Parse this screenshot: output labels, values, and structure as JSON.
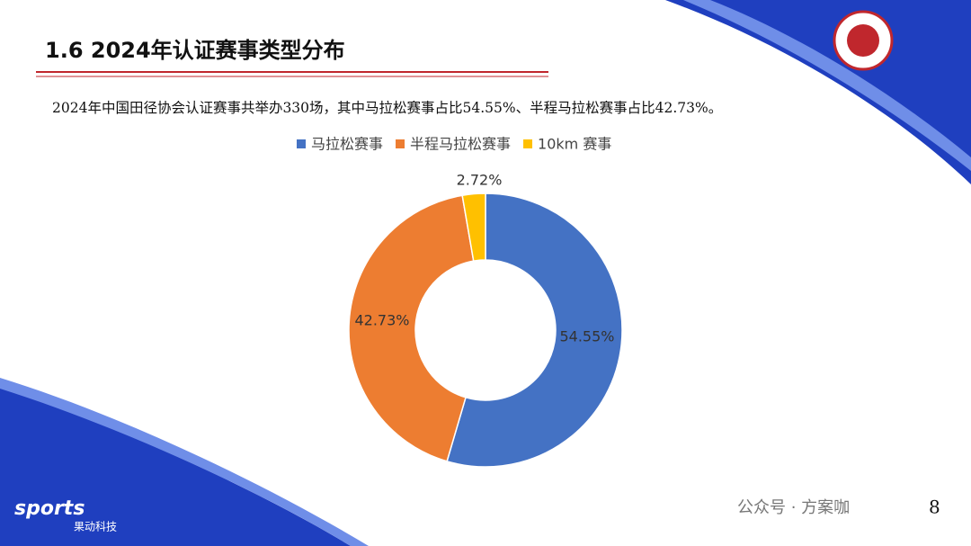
{
  "chart_data": {
    "type": "donut",
    "title": "1.6 2024年认证赛事类型分布",
    "subtitle": "2024年中国田径协会认证赛事共举办330场，其中马拉松赛事占比54.55%、半程马拉松赛事占比42.73%。",
    "categories": [
      "马拉松赛事",
      "半程马拉松赛事",
      "10km 赛事"
    ],
    "values": [
      54.55,
      42.73,
      2.72
    ],
    "value_labels": [
      "54.55%",
      "42.73%",
      "2.72%"
    ],
    "colors": [
      "#4472c4",
      "#ed7d31",
      "#ffc000"
    ],
    "legend": "top"
  },
  "page": {
    "logo": "sports",
    "logo_sub": "果动科技",
    "watermark": "公众号 · 方案咖",
    "page_number": "8"
  }
}
